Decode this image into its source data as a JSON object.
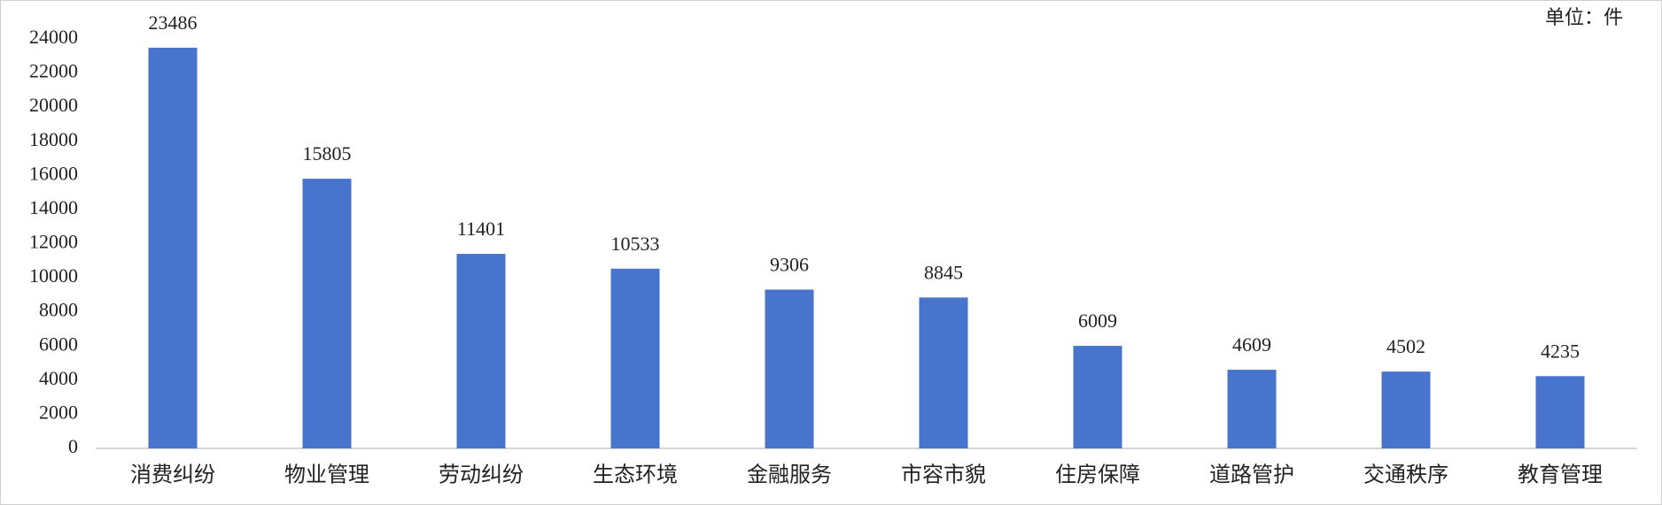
{
  "chart_data": {
    "type": "bar",
    "unit_label": "单位：件",
    "categories": [
      "消费纠纷",
      "物业管理",
      "劳动纠纷",
      "生态环境",
      "金融服务",
      "市容市貌",
      "住房保障",
      "道路管护",
      "交通秩序",
      "教育管理"
    ],
    "values": [
      23486,
      15805,
      11401,
      10533,
      9306,
      8845,
      6009,
      4609,
      4502,
      4235
    ],
    "color": "#4774cc",
    "ylim": [
      0,
      24000
    ],
    "yticks": [
      0,
      2000,
      4000,
      6000,
      8000,
      10000,
      12000,
      14000,
      16000,
      18000,
      20000,
      22000,
      24000
    ],
    "grid": false
  }
}
